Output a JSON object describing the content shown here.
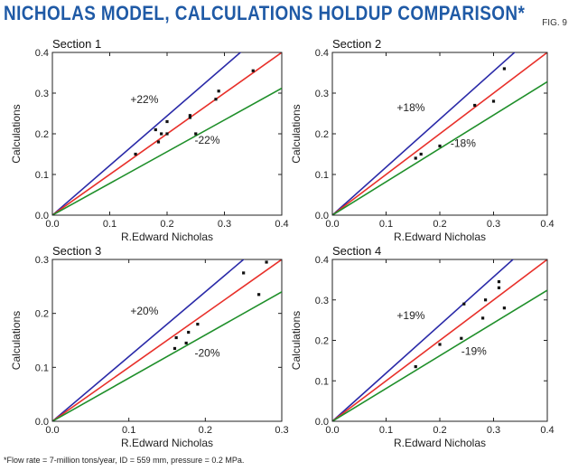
{
  "header": {
    "title": "NICHOLAS MODEL, CALCULATIONS HOLDUP COMPARISON*",
    "fig_label": "FIG. 9"
  },
  "footnote": "*Flow rate = 7-million tons/year, ID = 559 mm, pressure = 0.2 MPa.",
  "colors": {
    "upper_line": "#2a2aa8",
    "parity_line": "#e8302a",
    "lower_line": "#1f8f2a",
    "points": "#111111",
    "title": "#1f5aa6"
  },
  "chart_data": [
    {
      "type": "scatter",
      "title": "Section 1",
      "xlabel": "R.Edward Nicholas",
      "ylabel": "Calculations",
      "xlim": [
        0,
        0.4
      ],
      "ylim": [
        0,
        0.4
      ],
      "xticks": [
        "0.0",
        "0.1",
        "0.2",
        "0.3",
        "0.4"
      ],
      "yticks": [
        "0.0",
        "0.1",
        "0.2",
        "0.3",
        "0.4"
      ],
      "upper_percent": 22,
      "lower_percent": -22,
      "upper_label": "+22%",
      "lower_label": "-22%",
      "points": [
        {
          "x": 0.145,
          "y": 0.15
        },
        {
          "x": 0.18,
          "y": 0.21
        },
        {
          "x": 0.185,
          "y": 0.18
        },
        {
          "x": 0.19,
          "y": 0.2
        },
        {
          "x": 0.2,
          "y": 0.23
        },
        {
          "x": 0.2,
          "y": 0.2
        },
        {
          "x": 0.24,
          "y": 0.245
        },
        {
          "x": 0.24,
          "y": 0.24
        },
        {
          "x": 0.25,
          "y": 0.2
        },
        {
          "x": 0.285,
          "y": 0.285
        },
        {
          "x": 0.29,
          "y": 0.305
        },
        {
          "x": 0.35,
          "y": 0.355
        }
      ],
      "grid": false
    },
    {
      "type": "scatter",
      "title": "Section 2",
      "xlabel": "R.Edward Nicholas",
      "ylabel": "Calculations",
      "xlim": [
        0,
        0.4
      ],
      "ylim": [
        0,
        0.4
      ],
      "xticks": [
        "0.0",
        "0.1",
        "0.2",
        "0.3",
        "0.4"
      ],
      "yticks": [
        "0.0",
        "0.1",
        "0.2",
        "0.3",
        "0.4"
      ],
      "upper_percent": 18,
      "lower_percent": -18,
      "upper_label": "+18%",
      "lower_label": "-18%",
      "points": [
        {
          "x": 0.155,
          "y": 0.14
        },
        {
          "x": 0.165,
          "y": 0.15
        },
        {
          "x": 0.2,
          "y": 0.17
        },
        {
          "x": 0.265,
          "y": 0.27
        },
        {
          "x": 0.3,
          "y": 0.28
        },
        {
          "x": 0.32,
          "y": 0.36
        }
      ],
      "grid": false
    },
    {
      "type": "scatter",
      "title": "Section 3",
      "xlabel": "R.Edward Nicholas",
      "ylabel": "Calculations",
      "xlim": [
        0,
        0.3
      ],
      "ylim": [
        0,
        0.3
      ],
      "xticks": [
        "0.0",
        "0.1",
        "0.2",
        "0.3"
      ],
      "yticks": [
        "0.0",
        "0.1",
        "0.2",
        "0.3"
      ],
      "upper_percent": 20,
      "lower_percent": -20,
      "upper_label": "+20%",
      "lower_label": "-20%",
      "points": [
        {
          "x": 0.16,
          "y": 0.135
        },
        {
          "x": 0.162,
          "y": 0.155
        },
        {
          "x": 0.175,
          "y": 0.145
        },
        {
          "x": 0.178,
          "y": 0.165
        },
        {
          "x": 0.19,
          "y": 0.18
        },
        {
          "x": 0.25,
          "y": 0.275
        },
        {
          "x": 0.27,
          "y": 0.235
        },
        {
          "x": 0.28,
          "y": 0.295
        }
      ],
      "grid": false
    },
    {
      "type": "scatter",
      "title": "Section 4",
      "xlabel": "R.Edward Nicholas",
      "ylabel": "Calculations",
      "xlim": [
        0,
        0.4
      ],
      "ylim": [
        0,
        0.4
      ],
      "xticks": [
        "0.0",
        "0.1",
        "0.2",
        "0.3",
        "0.4"
      ],
      "yticks": [
        "0.0",
        "0.1",
        "0.2",
        "0.3",
        "0.4"
      ],
      "upper_percent": 19,
      "lower_percent": -19,
      "upper_label": "+19%",
      "lower_label": "-19%",
      "points": [
        {
          "x": 0.155,
          "y": 0.135
        },
        {
          "x": 0.2,
          "y": 0.19
        },
        {
          "x": 0.24,
          "y": 0.205
        },
        {
          "x": 0.245,
          "y": 0.29
        },
        {
          "x": 0.28,
          "y": 0.255
        },
        {
          "x": 0.285,
          "y": 0.3
        },
        {
          "x": 0.31,
          "y": 0.33
        },
        {
          "x": 0.31,
          "y": 0.345
        },
        {
          "x": 0.32,
          "y": 0.28
        }
      ],
      "grid": false
    }
  ]
}
